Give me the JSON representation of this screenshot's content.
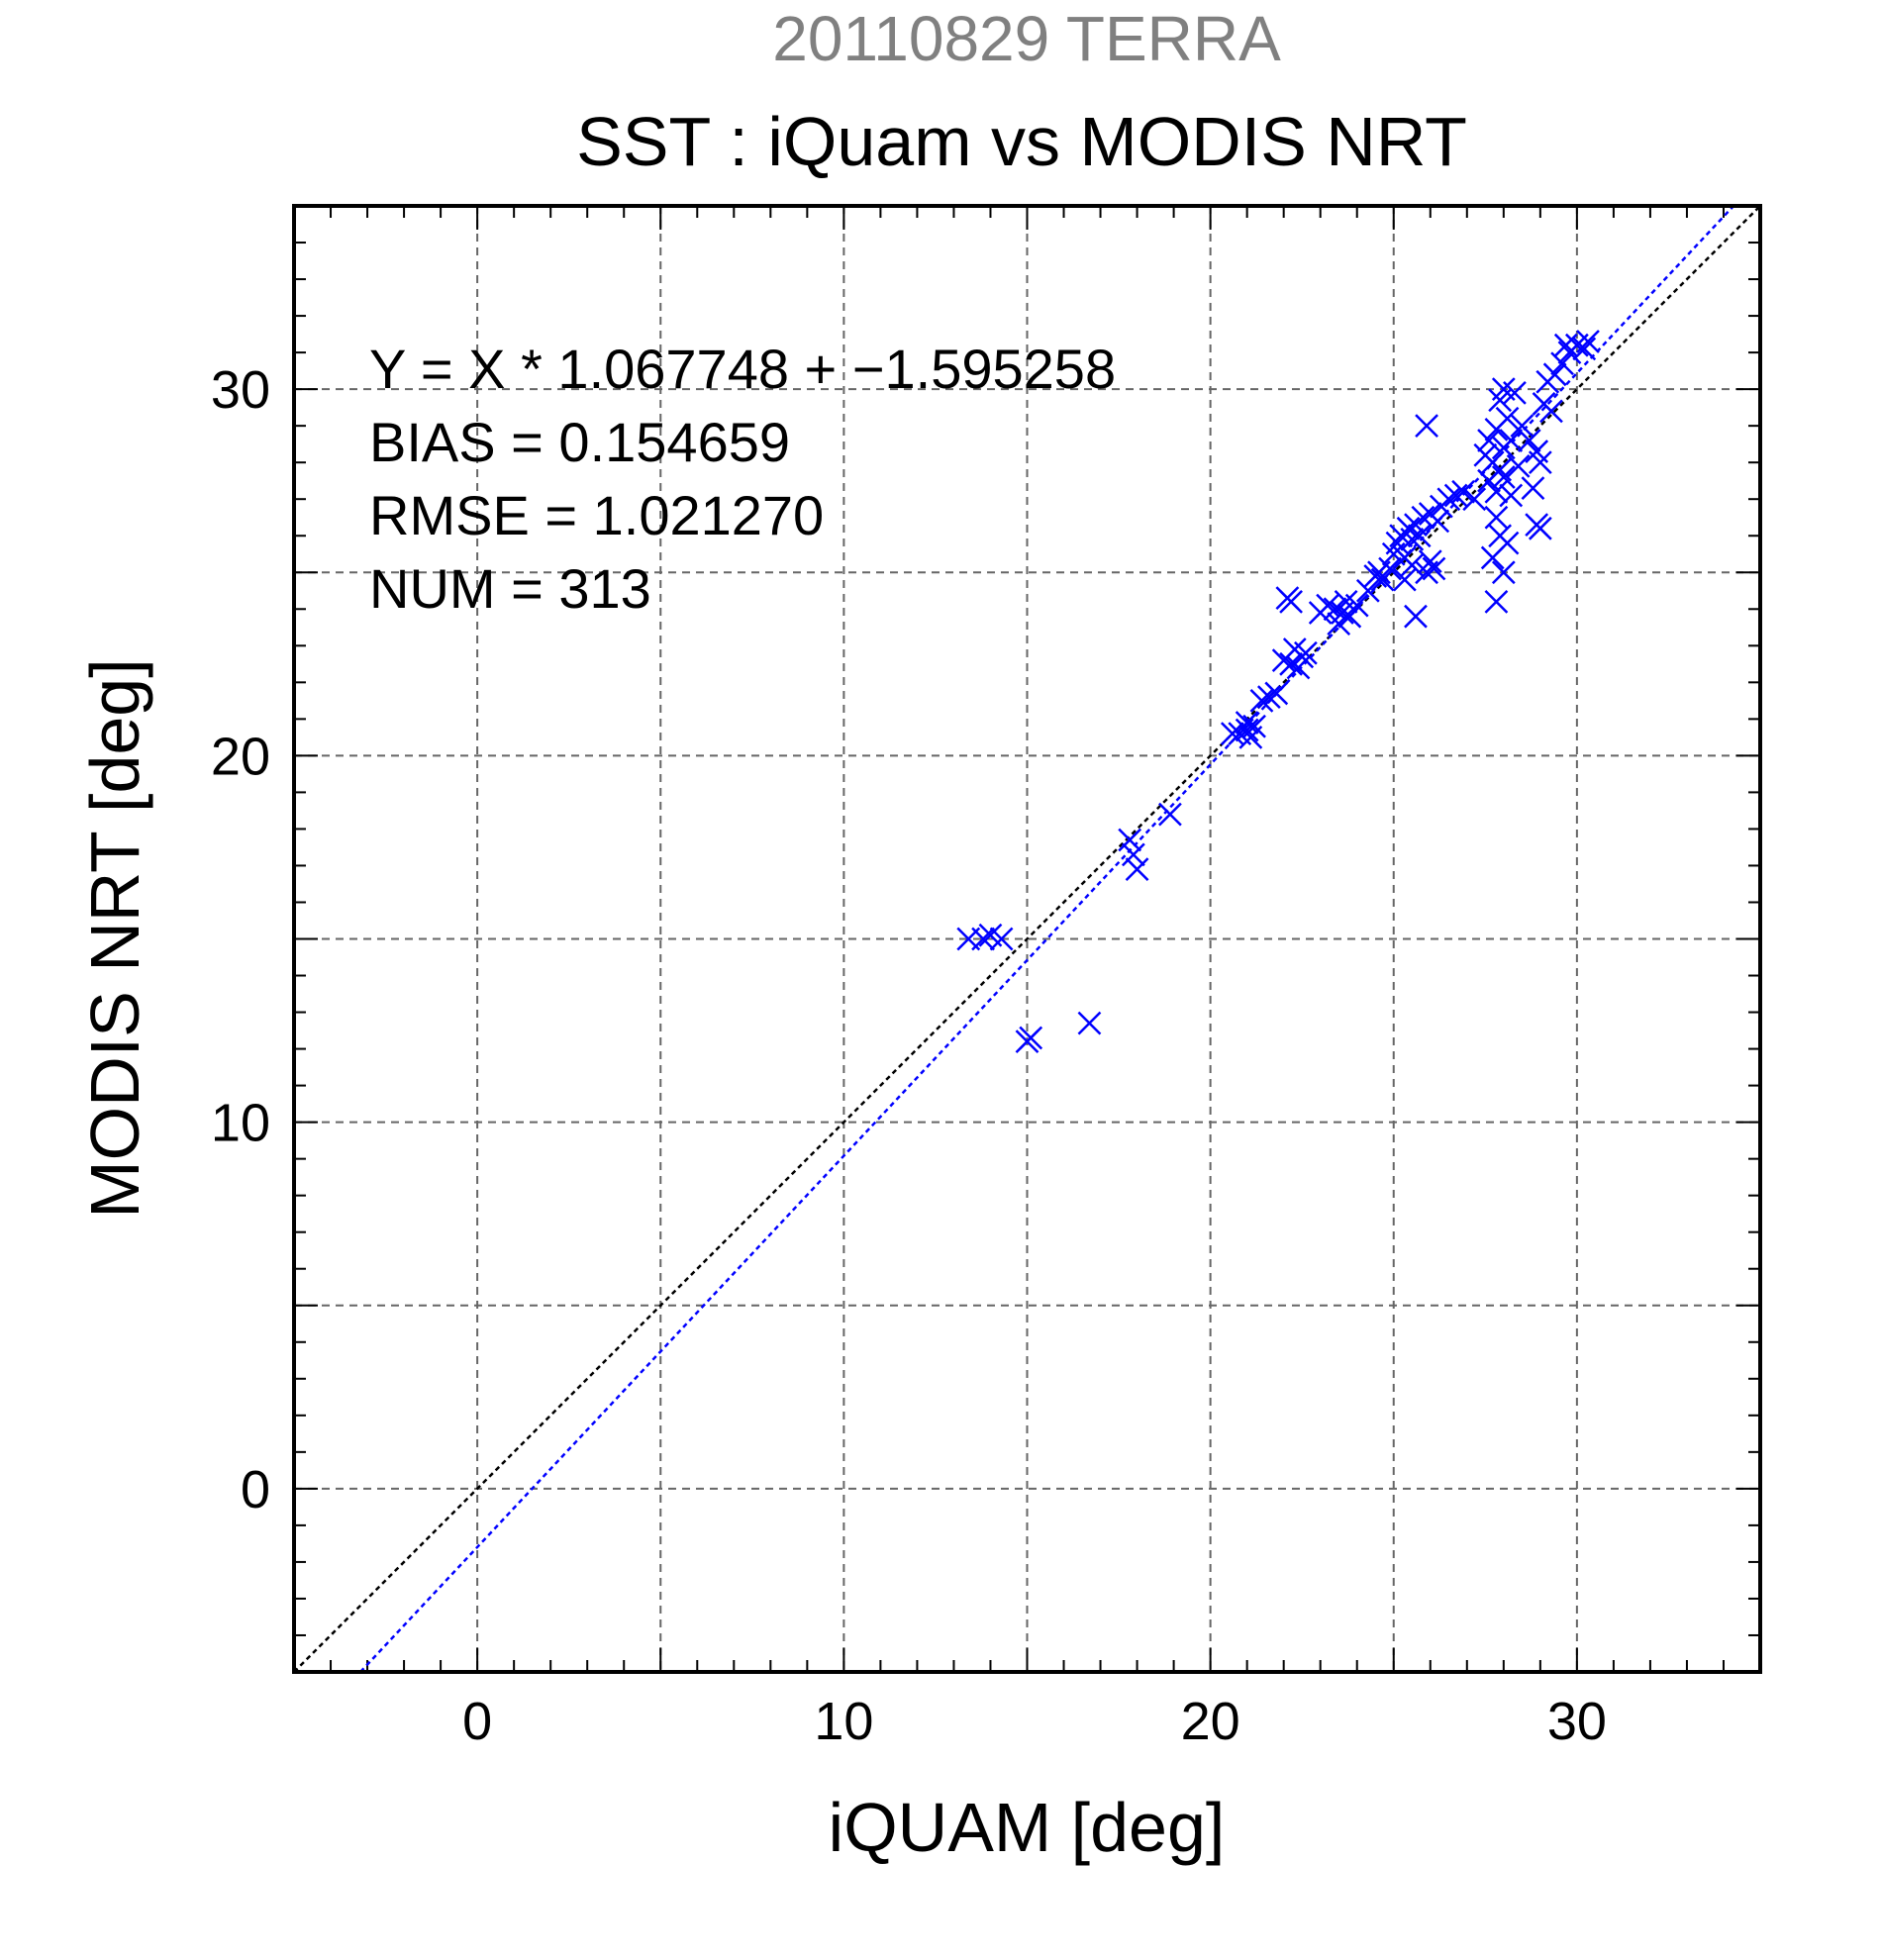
{
  "header": {
    "subtitle": "20110829 TERRA",
    "title": "SST : iQuam vs MODIS NRT"
  },
  "stats": [
    "Y = X * 1.067748 + −1.595258",
    "BIAS = 0.154659",
    "RMSE = 1.021270",
    "NUM = 313"
  ],
  "colors": {
    "points": "#0000ff",
    "regression_line": "#0000ff",
    "identity_line": "#000000",
    "grid": "#666666",
    "subtitle": "#808080",
    "text": "#000000"
  },
  "chart_data": {
    "type": "scatter",
    "title": "SST : iQuam vs MODIS NRT",
    "subtitle": "20110829 TERRA",
    "xlabel": "iQUAM [deg]",
    "ylabel": "MODIS NRT [deg]",
    "xlim": [
      -5,
      35
    ],
    "ylim": [
      -5,
      35
    ],
    "xticks": [
      0,
      10,
      20,
      30
    ],
    "yticks": [
      0,
      10,
      20,
      30
    ],
    "grid_step": 5,
    "grid": true,
    "marker": "x",
    "regression": {
      "slope": 1.067748,
      "intercept": -1.595258
    },
    "identity_line": true,
    "points": [
      [
        13.4,
        15.0
      ],
      [
        13.8,
        15.0
      ],
      [
        14.0,
        15.1
      ],
      [
        14.3,
        15.0
      ],
      [
        15.0,
        12.2
      ],
      [
        15.1,
        12.3
      ],
      [
        16.7,
        12.7
      ],
      [
        17.8,
        17.7
      ],
      [
        17.9,
        17.3
      ],
      [
        18.0,
        16.9
      ],
      [
        18.9,
        18.4
      ],
      [
        20.6,
        20.6
      ],
      [
        20.8,
        20.6
      ],
      [
        21.0,
        20.7
      ],
      [
        21.1,
        20.5
      ],
      [
        21.2,
        20.8
      ],
      [
        21.0,
        20.9
      ],
      [
        21.4,
        21.5
      ],
      [
        21.6,
        21.6
      ],
      [
        21.8,
        21.7
      ],
      [
        22.0,
        22.6
      ],
      [
        22.2,
        22.5
      ],
      [
        22.4,
        22.4
      ],
      [
        22.5,
        22.7
      ],
      [
        22.6,
        22.8
      ],
      [
        22.3,
        22.9
      ],
      [
        22.1,
        24.3
      ],
      [
        22.2,
        24.2
      ],
      [
        23.0,
        23.9
      ],
      [
        23.2,
        24.1
      ],
      [
        23.4,
        24.0
      ],
      [
        23.6,
        23.9
      ],
      [
        23.7,
        24.2
      ],
      [
        23.5,
        23.6
      ],
      [
        23.8,
        23.8
      ],
      [
        24.0,
        24.1
      ],
      [
        24.3,
        24.5
      ],
      [
        24.5,
        24.9
      ],
      [
        24.7,
        24.8
      ],
      [
        24.9,
        25.1
      ],
      [
        24.6,
        25.0
      ],
      [
        25.0,
        25.5
      ],
      [
        25.1,
        25.8
      ],
      [
        25.2,
        26.0
      ],
      [
        25.3,
        25.4
      ],
      [
        25.4,
        26.2
      ],
      [
        25.5,
        25.9
      ],
      [
        25.6,
        26.3
      ],
      [
        25.7,
        26.0
      ],
      [
        25.3,
        24.8
      ],
      [
        25.5,
        25.2
      ],
      [
        25.6,
        23.8
      ],
      [
        25.9,
        25.0
      ],
      [
        26.0,
        25.3
      ],
      [
        26.1,
        25.1
      ],
      [
        25.8,
        26.5
      ],
      [
        26.0,
        26.6
      ],
      [
        26.2,
        26.4
      ],
      [
        26.3,
        26.8
      ],
      [
        26.5,
        27.0
      ],
      [
        26.7,
        27.1
      ],
      [
        26.9,
        27.2
      ],
      [
        27.2,
        27.0
      ],
      [
        25.9,
        29.0
      ],
      [
        27.5,
        28.2
      ],
      [
        27.6,
        28.6
      ],
      [
        27.7,
        28.0
      ],
      [
        27.8,
        28.9
      ],
      [
        27.9,
        27.8
      ],
      [
        28.0,
        28.4
      ],
      [
        28.1,
        29.2
      ],
      [
        28.2,
        28.6
      ],
      [
        27.6,
        27.5
      ],
      [
        27.8,
        27.2
      ],
      [
        28.0,
        27.6
      ],
      [
        28.2,
        27.1
      ],
      [
        28.4,
        27.9
      ],
      [
        27.9,
        29.7
      ],
      [
        28.0,
        30.0
      ],
      [
        28.3,
        29.9
      ],
      [
        27.8,
        26.5
      ],
      [
        27.9,
        26.0
      ],
      [
        27.7,
        25.4
      ],
      [
        28.0,
        25.0
      ],
      [
        27.8,
        24.2
      ],
      [
        28.1,
        25.8
      ],
      [
        28.5,
        29.0
      ],
      [
        28.7,
        28.6
      ],
      [
        28.9,
        28.3
      ],
      [
        29.0,
        28.0
      ],
      [
        29.1,
        29.6
      ],
      [
        29.3,
        29.4
      ],
      [
        28.8,
        27.3
      ],
      [
        28.9,
        26.3
      ],
      [
        29.0,
        26.2
      ],
      [
        29.2,
        30.2
      ],
      [
        29.4,
        30.4
      ],
      [
        29.6,
        30.7
      ],
      [
        29.8,
        31.0
      ],
      [
        30.0,
        31.2
      ],
      [
        30.2,
        31.1
      ],
      [
        30.3,
        31.3
      ],
      [
        29.7,
        31.2
      ]
    ]
  }
}
